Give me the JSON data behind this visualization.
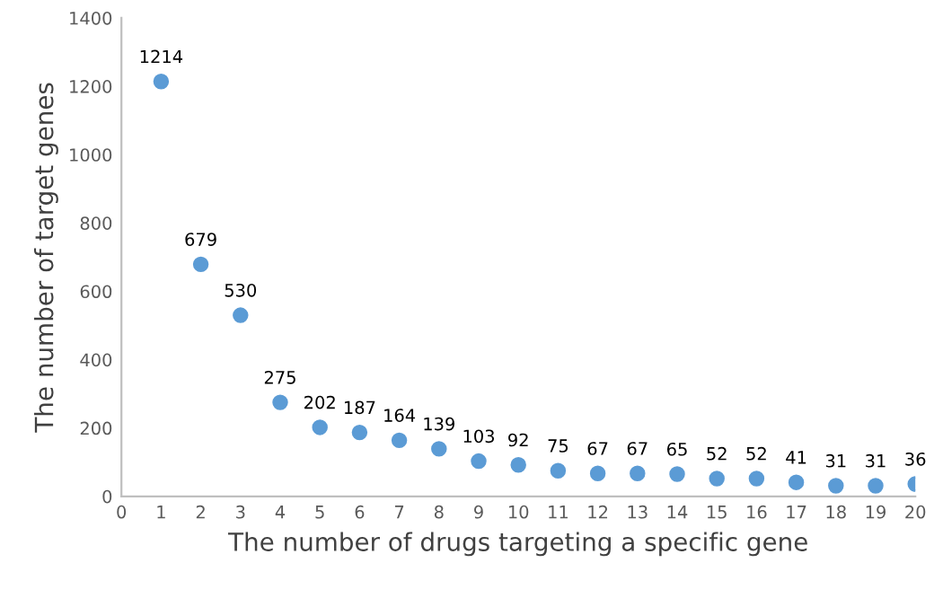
{
  "chart_data": {
    "type": "scatter",
    "xlabel": "The number of drugs targeting a specific gene",
    "ylabel": "The number of target genes",
    "x": [
      1,
      2,
      3,
      4,
      5,
      6,
      7,
      8,
      9,
      10,
      11,
      12,
      13,
      14,
      15,
      16,
      17,
      18,
      19,
      20
    ],
    "series": [
      {
        "color": "#5b9bd5",
        "values": [
          1214,
          679,
          530,
          275,
          202,
          187,
          164,
          139,
          103,
          92,
          75,
          67,
          67,
          65,
          52,
          52,
          41,
          31,
          31,
          36
        ]
      }
    ],
    "xlim": [
      0,
      20
    ],
    "xticks": [
      0,
      1,
      2,
      3,
      4,
      5,
      6,
      7,
      8,
      9,
      10,
      11,
      12,
      13,
      14,
      15,
      16,
      17,
      18,
      19,
      20
    ],
    "ylim": [
      0,
      1400
    ],
    "yticks": [
      0,
      200,
      400,
      600,
      800,
      1000,
      1200,
      1400
    ],
    "grid": false,
    "legend": false,
    "marker": "circle",
    "data_labels": true
  }
}
